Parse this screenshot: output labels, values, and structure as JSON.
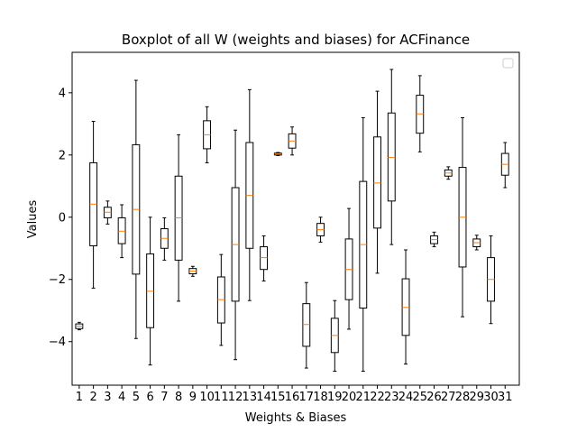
{
  "chart_data": {
    "type": "boxplot",
    "title": "Boxplot of all W (weights and biases) for ACFinance",
    "xlabel": "Weights & Biases",
    "ylabel": "Values",
    "ylim": [
      -5.4,
      5.3
    ],
    "yticks": [
      -4,
      -2,
      0,
      2,
      4
    ],
    "legend": "upper right (empty)",
    "grid": false,
    "box_color": "#000000",
    "median_color": "#ff7f0e",
    "categories": [
      "1",
      "2",
      "3",
      "4",
      "5",
      "6",
      "7",
      "8",
      "9",
      "10",
      "11",
      "12",
      "13",
      "14",
      "15",
      "16",
      "17",
      "18",
      "19",
      "20",
      "21",
      "22",
      "23",
      "24",
      "25",
      "26",
      "27",
      "28",
      "29",
      "30",
      "31"
    ],
    "boxes": [
      {
        "label": "1",
        "whisker_low": -3.62,
        "q1": -3.58,
        "median": -3.5,
        "q3": -3.43,
        "whisker_high": -3.38
      },
      {
        "label": "2",
        "whisker_low": -2.28,
        "q1": -0.92,
        "median": 0.42,
        "q3": 1.75,
        "whisker_high": 3.08
      },
      {
        "label": "3",
        "whisker_low": -0.22,
        "q1": -0.02,
        "median": 0.16,
        "q3": 0.32,
        "whisker_high": 0.52
      },
      {
        "label": "4",
        "whisker_low": -1.3,
        "q1": -0.85,
        "median": -0.45,
        "q3": -0.02,
        "whisker_high": 0.4
      },
      {
        "label": "5",
        "whisker_low": -3.9,
        "q1": -1.83,
        "median": 0.25,
        "q3": 2.33,
        "whisker_high": 4.4
      },
      {
        "label": "6",
        "whisker_low": -4.75,
        "q1": -3.55,
        "median": -2.38,
        "q3": -1.18,
        "whisker_high": 0.0
      },
      {
        "label": "7",
        "whisker_low": -1.38,
        "q1": -1.0,
        "median": -0.68,
        "q3": -0.37,
        "whisker_high": -0.02
      },
      {
        "label": "8",
        "whisker_low": -2.7,
        "q1": -1.38,
        "median": -0.02,
        "q3": 1.32,
        "whisker_high": 2.65
      },
      {
        "label": "9",
        "whisker_low": -1.9,
        "q1": -1.82,
        "median": -1.73,
        "q3": -1.65,
        "whisker_high": -1.58
      },
      {
        "label": "10",
        "whisker_low": 1.75,
        "q1": 2.2,
        "median": 2.65,
        "q3": 3.1,
        "whisker_high": 3.55
      },
      {
        "label": "11",
        "whisker_low": -4.12,
        "q1": -3.4,
        "median": -2.65,
        "q3": -1.92,
        "whisker_high": -1.2
      },
      {
        "label": "12",
        "whisker_low": -4.58,
        "q1": -2.7,
        "median": -0.88,
        "q3": 0.95,
        "whisker_high": 2.8
      },
      {
        "label": "13",
        "whisker_low": -2.68,
        "q1": -1.0,
        "median": 0.7,
        "q3": 2.4,
        "whisker_high": 4.1
      },
      {
        "label": "14",
        "whisker_low": -2.05,
        "q1": -1.68,
        "median": -1.3,
        "q3": -0.95,
        "whisker_high": -0.6
      },
      {
        "label": "15",
        "whisker_low": 1.98,
        "q1": 2.0,
        "median": 2.03,
        "q3": 2.06,
        "whisker_high": 2.08
      },
      {
        "label": "16",
        "whisker_low": 2.0,
        "q1": 2.22,
        "median": 2.45,
        "q3": 2.68,
        "whisker_high": 2.9
      },
      {
        "label": "17",
        "whisker_low": -4.85,
        "q1": -4.15,
        "median": -3.45,
        "q3": -2.78,
        "whisker_high": -2.1
      },
      {
        "label": "18",
        "whisker_low": -0.8,
        "q1": -0.6,
        "median": -0.4,
        "q3": -0.2,
        "whisker_high": 0.0
      },
      {
        "label": "19",
        "whisker_low": -4.95,
        "q1": -4.35,
        "median": -3.8,
        "q3": -3.25,
        "whisker_high": -2.68
      },
      {
        "label": "20",
        "whisker_low": -3.6,
        "q1": -2.65,
        "median": -1.68,
        "q3": -0.7,
        "whisker_high": 0.28
      },
      {
        "label": "21",
        "whisker_low": -4.95,
        "q1": -2.92,
        "median": -0.88,
        "q3": 1.15,
        "whisker_high": 3.2
      },
      {
        "label": "22",
        "whisker_low": -1.8,
        "q1": -0.35,
        "median": 1.1,
        "q3": 2.58,
        "whisker_high": 4.05
      },
      {
        "label": "23",
        "whisker_low": -0.88,
        "q1": 0.52,
        "median": 1.92,
        "q3": 3.35,
        "whisker_high": 4.75
      },
      {
        "label": "24",
        "whisker_low": -4.72,
        "q1": -3.8,
        "median": -2.9,
        "q3": -1.98,
        "whisker_high": -1.05
      },
      {
        "label": "25",
        "whisker_low": 2.1,
        "q1": 2.7,
        "median": 3.32,
        "q3": 3.92,
        "whisker_high": 4.55
      },
      {
        "label": "26",
        "whisker_low": -0.95,
        "q1": -0.85,
        "median": -0.72,
        "q3": -0.6,
        "whisker_high": -0.48
      },
      {
        "label": "27",
        "whisker_low": 1.22,
        "q1": 1.32,
        "median": 1.42,
        "q3": 1.52,
        "whisker_high": 1.62
      },
      {
        "label": "28",
        "whisker_low": -3.2,
        "q1": -1.6,
        "median": 0.0,
        "q3": 1.6,
        "whisker_high": 3.2
      },
      {
        "label": "29",
        "whisker_low": -1.05,
        "q1": -0.95,
        "median": -0.82,
        "q3": -0.7,
        "whisker_high": -0.58
      },
      {
        "label": "30",
        "whisker_low": -3.42,
        "q1": -2.7,
        "median": -2.0,
        "q3": -1.3,
        "whisker_high": -0.6
      },
      {
        "label": "31",
        "whisker_low": 0.95,
        "q1": 1.35,
        "median": 1.7,
        "q3": 2.05,
        "whisker_high": 2.4
      }
    ]
  }
}
